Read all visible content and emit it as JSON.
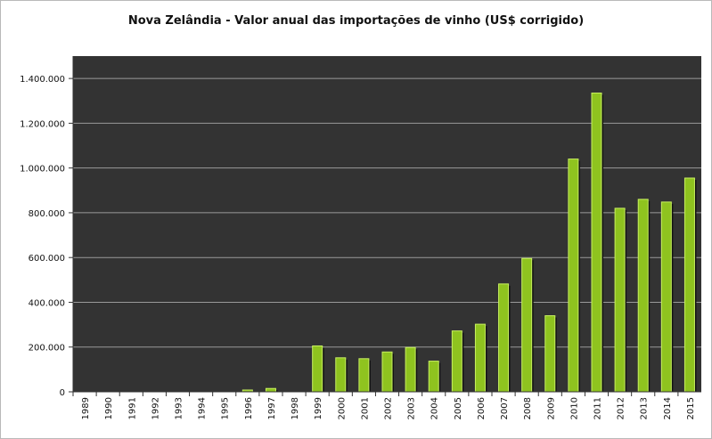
{
  "chart_data": {
    "type": "bar",
    "title": "Nova Zelândia - Valor anual das importações de vinho (US$ corrigido)",
    "xlabel": "",
    "ylabel": "",
    "categories": [
      "1989",
      "1990",
      "1991",
      "1992",
      "1993",
      "1994",
      "1995",
      "1996",
      "1997",
      "1998",
      "1999",
      "2000",
      "2001",
      "2002",
      "2003",
      "2004",
      "2005",
      "2006",
      "2007",
      "2008",
      "2009",
      "2010",
      "2011",
      "2012",
      "2013",
      "2014",
      "2015"
    ],
    "values": [
      0,
      0,
      0,
      0,
      0,
      0,
      0,
      8000,
      15000,
      0,
      205000,
      152000,
      148000,
      178000,
      198000,
      137000,
      272000,
      302000,
      482000,
      596000,
      340000,
      1040000,
      1335000,
      820000,
      860000,
      848000,
      955000
    ],
    "ylim": [
      0,
      1500000
    ],
    "yticks": [
      0,
      200000,
      400000,
      600000,
      800000,
      1000000,
      1200000,
      1400000
    ],
    "ytick_labels": [
      "0",
      "200.000",
      "400.000",
      "600.000",
      "800.000",
      "1.000.000",
      "1.200.000",
      "1.400.000"
    ],
    "grid": true,
    "colors": {
      "plot_background": "#333333",
      "bar_fill": "#8fc31f",
      "bar_edge": "#c8f060",
      "bar_shadow": "#111111",
      "grid": "#9a9a9a"
    }
  }
}
